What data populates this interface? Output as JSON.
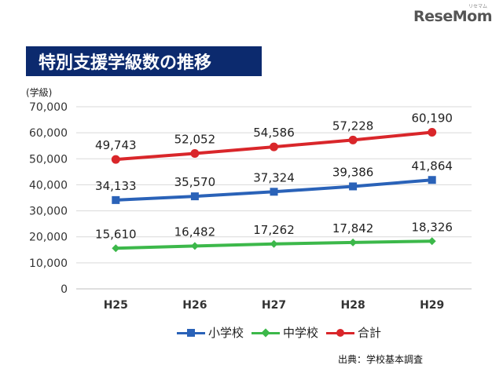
{
  "logo": {
    "text": "ReseMom",
    "sub": "リセマム"
  },
  "header": {
    "title": "特別支援学級数の推移",
    "y_unit": "(学級)"
  },
  "source": "出典：学校基本調査",
  "chart_data": {
    "type": "line",
    "title": "特別支援学級数の推移",
    "ylabel": "(学級)",
    "xlabel": "",
    "categories": [
      "H25",
      "H26",
      "H27",
      "H28",
      "H29"
    ],
    "ylim": [
      0,
      70000
    ],
    "yticks": [
      0,
      10000,
      20000,
      30000,
      40000,
      50000,
      60000,
      70000
    ],
    "ytick_labels": [
      "0",
      "10,000",
      "20,000",
      "30,000",
      "40,000",
      "50,000",
      "60,000",
      "70,000"
    ],
    "grid": true,
    "legend": "bottom",
    "series": [
      {
        "name": "小学校",
        "values": [
          34133,
          35570,
          37324,
          39386,
          41864
        ],
        "labels": [
          "34,133",
          "35,570",
          "37,324",
          "39,386",
          "41,864"
        ],
        "color": "#2a62b8",
        "marker": "square"
      },
      {
        "name": "中学校",
        "values": [
          15610,
          16482,
          17262,
          17842,
          18326
        ],
        "labels": [
          "15,610",
          "16,482",
          "17,262",
          "17,842",
          "18,326"
        ],
        "color": "#3cb84a",
        "marker": "diamond"
      },
      {
        "name": "合計",
        "values": [
          49743,
          52052,
          54586,
          57228,
          60190
        ],
        "labels": [
          "49,743",
          "52,052",
          "54,586",
          "57,228",
          "60,190"
        ],
        "color": "#d9262a",
        "marker": "circle"
      }
    ]
  }
}
